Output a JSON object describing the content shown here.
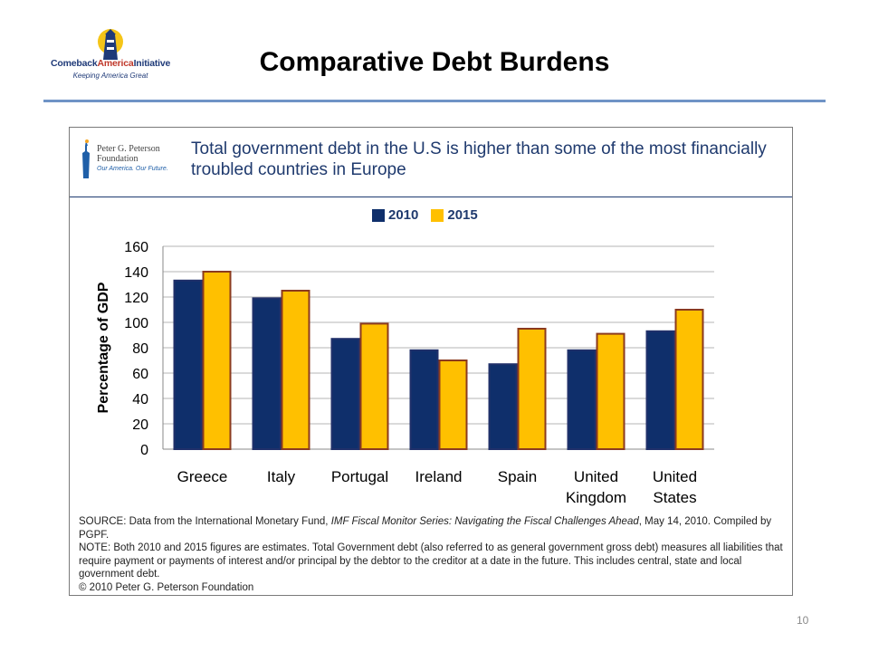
{
  "slide": {
    "title": "Comparative Debt Burdens",
    "page_number": "10"
  },
  "logo": {
    "name_part1": "Comeback",
    "name_part2": "America",
    "name_part3": "Initiative",
    "tagline": "Keeping America Great"
  },
  "pgpf": {
    "name_line1": "Peter G. Peterson",
    "name_line2": "Foundation",
    "tagline": "Our America. Our Future."
  },
  "chart_data": {
    "type": "bar",
    "title": "Total government debt in the U.S is higher than some of the most financially troubled countries in Europe",
    "ylabel": "Percentage of GDP",
    "xlabel": "",
    "ylim": [
      0,
      160
    ],
    "yticks": [
      0,
      20,
      40,
      60,
      80,
      100,
      120,
      140,
      160
    ],
    "grid": true,
    "legend_position": "top-center",
    "categories": [
      [
        "Greece"
      ],
      [
        "Italy"
      ],
      [
        "Portugal"
      ],
      [
        "Ireland"
      ],
      [
        "Spain"
      ],
      [
        "United",
        "Kingdom"
      ],
      [
        "United",
        "States"
      ]
    ],
    "series": [
      {
        "name": "2010",
        "color": "#0f2f6b",
        "values": [
          133,
          119,
          87,
          78,
          67,
          78,
          93
        ]
      },
      {
        "name": "2015",
        "color": "#ffc000",
        "values": [
          140,
          125,
          99,
          70,
          95,
          91,
          110
        ]
      }
    ]
  },
  "notes": {
    "source_prefix": "SOURCE: Data from the International Monetary Fund, ",
    "source_italic": "IMF Fiscal Monitor Series: Navigating the Fiscal Challenges Ahead",
    "source_suffix": ", May 14, 2010. Compiled by PGPF.",
    "note": "NOTE: Both 2010 and 2015 figures are estimates. Total Government debt (also referred to as general government gross debt) measures all liabilities that require payment or payments of interest and/or principal by the debtor to the creditor at a date in the future. This includes central, state and local government debt.",
    "copyright": "© 2010 Peter G. Peterson Foundation"
  }
}
